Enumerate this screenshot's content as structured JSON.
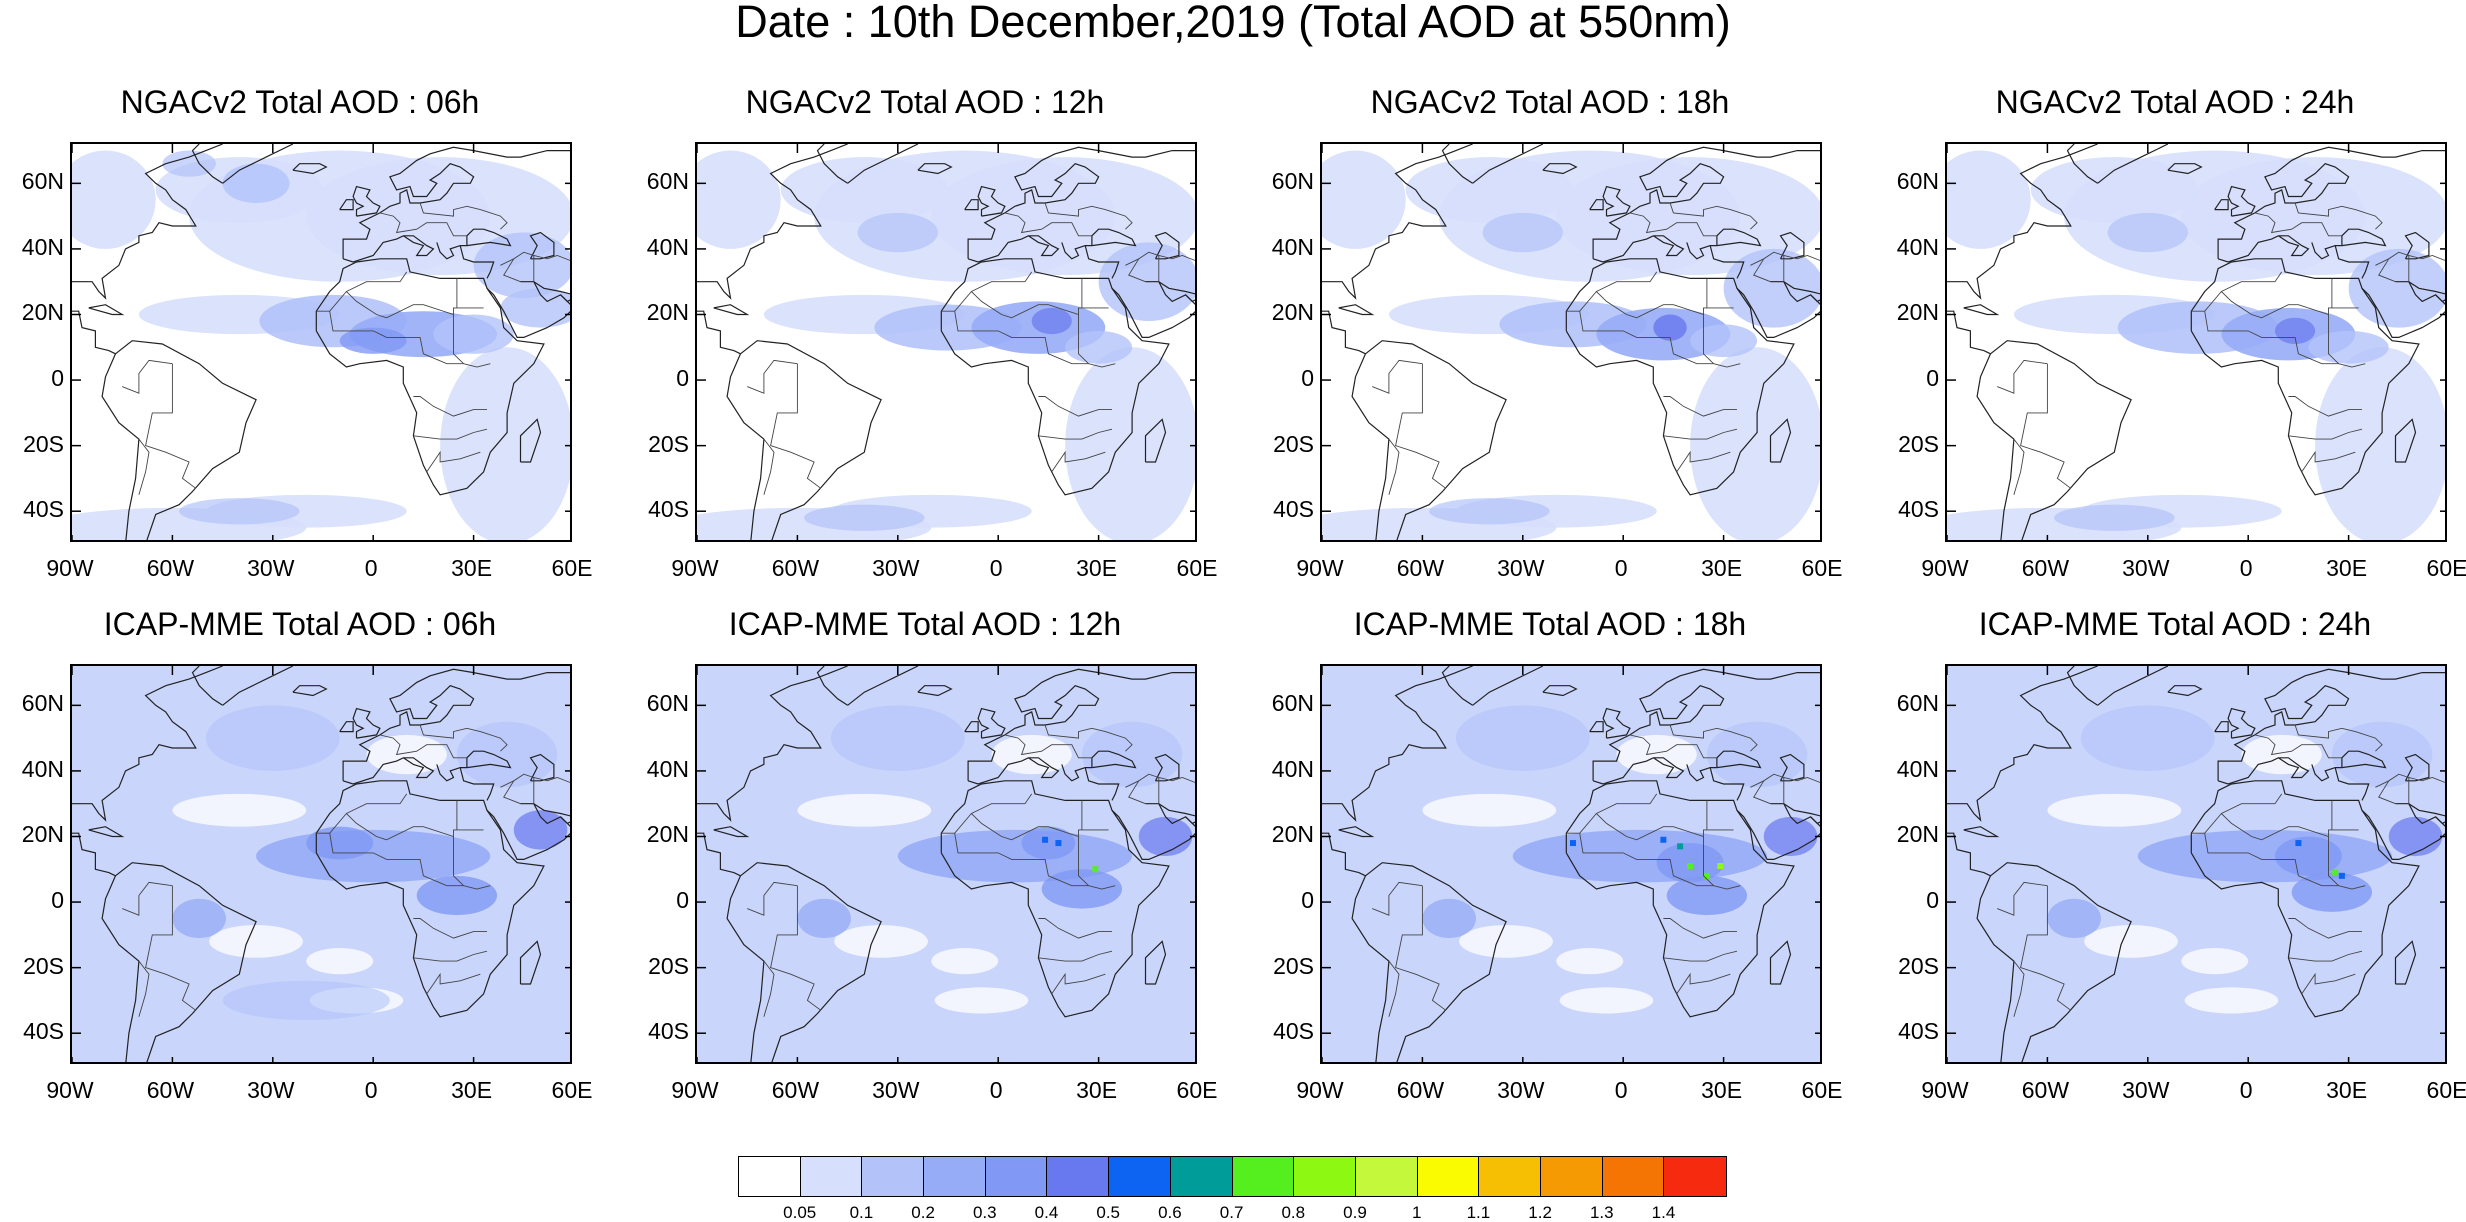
{
  "page": {
    "title": "Date : 10th December,2019 (Total AOD at 550nm)"
  },
  "axes": {
    "lat_labels": [
      "60N",
      "40N",
      "20N",
      "0",
      "20S",
      "40S"
    ],
    "lon_labels": [
      "90W",
      "60W",
      "30W",
      "0",
      "30E",
      "60E"
    ]
  },
  "panels": [
    {
      "title": "NGACv2 Total AOD : 06h",
      "model": "ngac",
      "hour": "06"
    },
    {
      "title": "NGACv2 Total AOD : 12h",
      "model": "ngac",
      "hour": "12"
    },
    {
      "title": "NGACv2 Total AOD : 18h",
      "model": "ngac",
      "hour": "18"
    },
    {
      "title": "NGACv2 Total AOD : 24h",
      "model": "ngac",
      "hour": "24"
    },
    {
      "title": "ICAP-MME Total AOD : 06h",
      "model": "icap",
      "hour": "06"
    },
    {
      "title": "ICAP-MME Total AOD : 12h",
      "model": "icap",
      "hour": "12"
    },
    {
      "title": "ICAP-MME Total AOD : 18h",
      "model": "icap",
      "hour": "18"
    },
    {
      "title": "ICAP-MME Total AOD : 24h",
      "model": "icap",
      "hour": "24"
    }
  ],
  "colorbar": {
    "colors": [
      "#ffffff",
      "#d6dffc",
      "#b3c3fa",
      "#97acf6",
      "#8198f4",
      "#6878ee",
      "#0e64f2",
      "#009c9a",
      "#55ee1e",
      "#8df811",
      "#c4f93b",
      "#fafa00",
      "#f7bf03",
      "#f59a02",
      "#f47404",
      "#f52a0e"
    ],
    "labels": [
      "0.05",
      "0.1",
      "0.2",
      "0.3",
      "0.4",
      "0.5",
      "0.6",
      "0.7",
      "0.8",
      "0.9",
      "1",
      "1.1",
      "1.2",
      "1.3",
      "1.4"
    ]
  }
}
